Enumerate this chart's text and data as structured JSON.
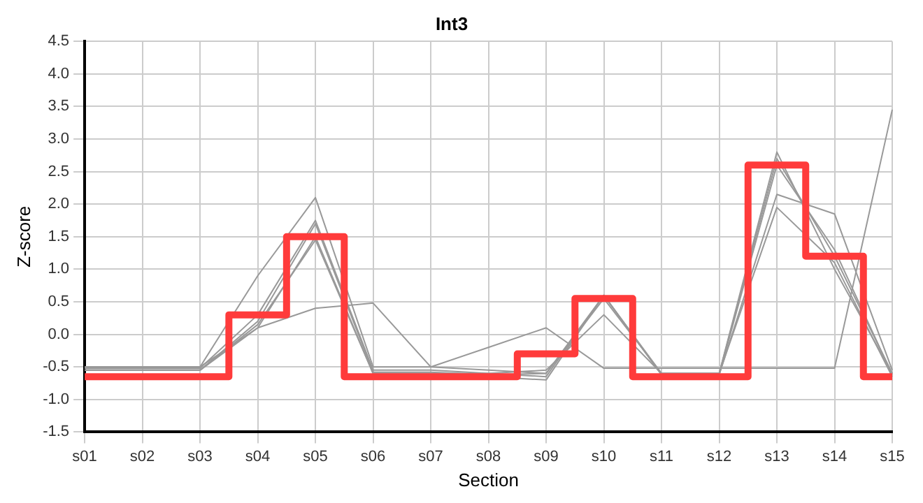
{
  "chart_data": {
    "type": "line",
    "title": "Int3",
    "xlabel": "Section",
    "ylabel": "Z-score",
    "categories": [
      "s01",
      "s02",
      "s03",
      "s04",
      "s05",
      "s06",
      "s07",
      "s08",
      "s09",
      "s10",
      "s11",
      "s12",
      "s13",
      "s14",
      "s15"
    ],
    "series": [
      {
        "type": "line",
        "color": "#999999",
        "values": [
          -0.5,
          -0.5,
          -0.5,
          0.9,
          2.1,
          -0.5,
          -0.5,
          -0.55,
          -0.6,
          0.55,
          -0.6,
          -0.6,
          2.8,
          1.0,
          -0.6
        ]
      },
      {
        "type": "line",
        "color": "#999999",
        "values": [
          -0.5,
          -0.5,
          -0.5,
          0.1,
          0.4,
          0.48,
          -0.5,
          -0.2,
          0.1,
          -0.52,
          -0.52,
          -0.52,
          -0.52,
          -0.52,
          3.45
        ]
      },
      {
        "type": "line",
        "color": "#999999",
        "values": [
          -0.52,
          -0.52,
          -0.52,
          0.3,
          1.75,
          -0.55,
          -0.55,
          -0.6,
          -0.65,
          0.6,
          -0.6,
          -0.6,
          2.7,
          1.2,
          -0.6
        ]
      },
      {
        "type": "line",
        "color": "#999999",
        "values": [
          -0.55,
          -0.55,
          -0.55,
          0.2,
          1.7,
          -0.58,
          -0.58,
          -0.62,
          -0.6,
          0.6,
          -0.62,
          -0.62,
          2.15,
          1.85,
          -0.55
        ]
      },
      {
        "type": "line",
        "color": "#999999",
        "values": [
          -0.55,
          -0.55,
          -0.55,
          0.1,
          1.5,
          -0.6,
          -0.6,
          -0.6,
          -0.55,
          0.3,
          -0.6,
          -0.6,
          1.95,
          1.1,
          -0.65
        ]
      },
      {
        "type": "line",
        "color": "#999999",
        "values": [
          -0.55,
          -0.55,
          -0.55,
          0.15,
          1.45,
          -0.6,
          -0.6,
          -0.65,
          -0.7,
          0.6,
          -0.62,
          -0.62,
          2.6,
          1.3,
          -0.62
        ]
      },
      {
        "type": "step",
        "color": "#ff3b3b",
        "values": [
          -0.65,
          -0.65,
          -0.65,
          0.3,
          1.5,
          -0.65,
          -0.65,
          -0.65,
          -0.3,
          0.55,
          -0.65,
          -0.65,
          2.6,
          1.2,
          -0.65
        ]
      }
    ],
    "ylim": [
      -1.5,
      4.5
    ],
    "yticks": [
      {
        "value": -1.5,
        "label": "-1.5"
      },
      {
        "value": -1,
        "label": "-1.0"
      },
      {
        "value": -0.5,
        "label": "-0.5"
      },
      {
        "value": 0,
        "label": "0.0"
      },
      {
        "value": 0.5,
        "label": "0.5"
      },
      {
        "value": 1,
        "label": "1.0"
      },
      {
        "value": 1.5,
        "label": "1.5"
      },
      {
        "value": 2,
        "label": "2.0"
      },
      {
        "value": 2.5,
        "label": "2.5"
      },
      {
        "value": 3,
        "label": "3.0"
      },
      {
        "value": 3.5,
        "label": "3.5"
      },
      {
        "value": 4,
        "label": "4.0"
      },
      {
        "value": 4.5,
        "label": "4.5"
      }
    ],
    "grid": true,
    "legend": false,
    "marker": "none"
  }
}
